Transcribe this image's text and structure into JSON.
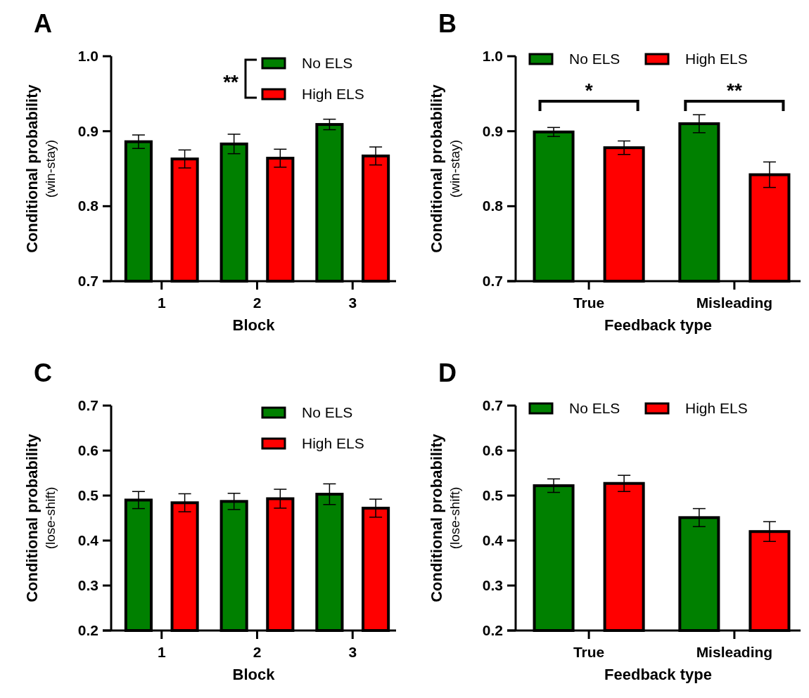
{
  "chart_data": [
    {
      "type": "bar",
      "title": "A",
      "xlabel": "Block",
      "ylabel": "Conditional probability",
      "subtitle": "(win-stay)",
      "categories": [
        "1",
        "2",
        "3"
      ],
      "series": [
        {
          "name": "No ELS",
          "color": "#008000",
          "values": [
            0.886,
            0.883,
            0.909
          ],
          "errors": [
            0.009,
            0.013,
            0.007
          ]
        },
        {
          "name": "High ELS",
          "color": "#ff0000",
          "values": [
            0.863,
            0.864,
            0.867
          ],
          "errors": [
            0.012,
            0.012,
            0.012
          ]
        }
      ],
      "ylim": [
        0.7,
        1.0
      ],
      "yticks": [
        0.7,
        0.8,
        0.9,
        {
          "value": 1.0,
          "label": "1.0"
        }
      ],
      "legend": "top right",
      "grid": false,
      "annotations": [
        "**"
      ]
    },
    {
      "type": "bar",
      "title": "B",
      "xlabel": "Feedback type",
      "ylabel": "Conditional probability",
      "subtitle": "(win-stay)",
      "categories": [
        "True",
        "Misleading"
      ],
      "series": [
        {
          "name": "No ELS",
          "color": "#008000",
          "values": [
            0.899,
            0.91
          ],
          "errors": [
            0.006,
            0.012
          ]
        },
        {
          "name": "High ELS",
          "color": "#ff0000",
          "values": [
            0.878,
            0.842
          ],
          "errors": [
            0.009,
            0.017
          ]
        }
      ],
      "ylim": [
        0.7,
        1.0
      ],
      "yticks": [
        0.7,
        0.8,
        0.9,
        {
          "value": 1.0,
          "label": "1.0"
        }
      ],
      "legend": "top",
      "grid": false,
      "annotations": [
        "*",
        "**"
      ]
    },
    {
      "type": "bar",
      "title": "C",
      "xlabel": "Block",
      "ylabel": "Conditional probability",
      "subtitle": "(lose-shift)",
      "categories": [
        "1",
        "2",
        "3"
      ],
      "series": [
        {
          "name": "No ELS",
          "color": "#008000",
          "values": [
            0.49,
            0.487,
            0.503
          ],
          "errors": [
            0.019,
            0.018,
            0.023
          ]
        },
        {
          "name": "High ELS",
          "color": "#ff0000",
          "values": [
            0.484,
            0.493,
            0.472
          ],
          "errors": [
            0.02,
            0.021,
            0.02
          ]
        }
      ],
      "ylim": [
        0.2,
        0.7
      ],
      "yticks": [
        0.2,
        0.3,
        0.4,
        0.5,
        0.6,
        0.7
      ],
      "legend": "top right",
      "grid": false
    },
    {
      "type": "bar",
      "title": "D",
      "xlabel": "Feedback type",
      "ylabel": "Conditional probability",
      "subtitle": "(lose-shift)",
      "categories": [
        "True",
        "Misleading"
      ],
      "series": [
        {
          "name": "No ELS",
          "color": "#008000",
          "values": [
            0.522,
            0.451
          ],
          "errors": [
            0.015,
            0.02
          ]
        },
        {
          "name": "High ELS",
          "color": "#ff0000",
          "values": [
            0.527,
            0.42
          ],
          "errors": [
            0.018,
            0.022
          ]
        }
      ],
      "ylim": [
        0.2,
        0.7
      ],
      "yticks": [
        0.2,
        0.3,
        0.4,
        0.5,
        0.6,
        0.7
      ],
      "legend": "top",
      "grid": false
    }
  ]
}
